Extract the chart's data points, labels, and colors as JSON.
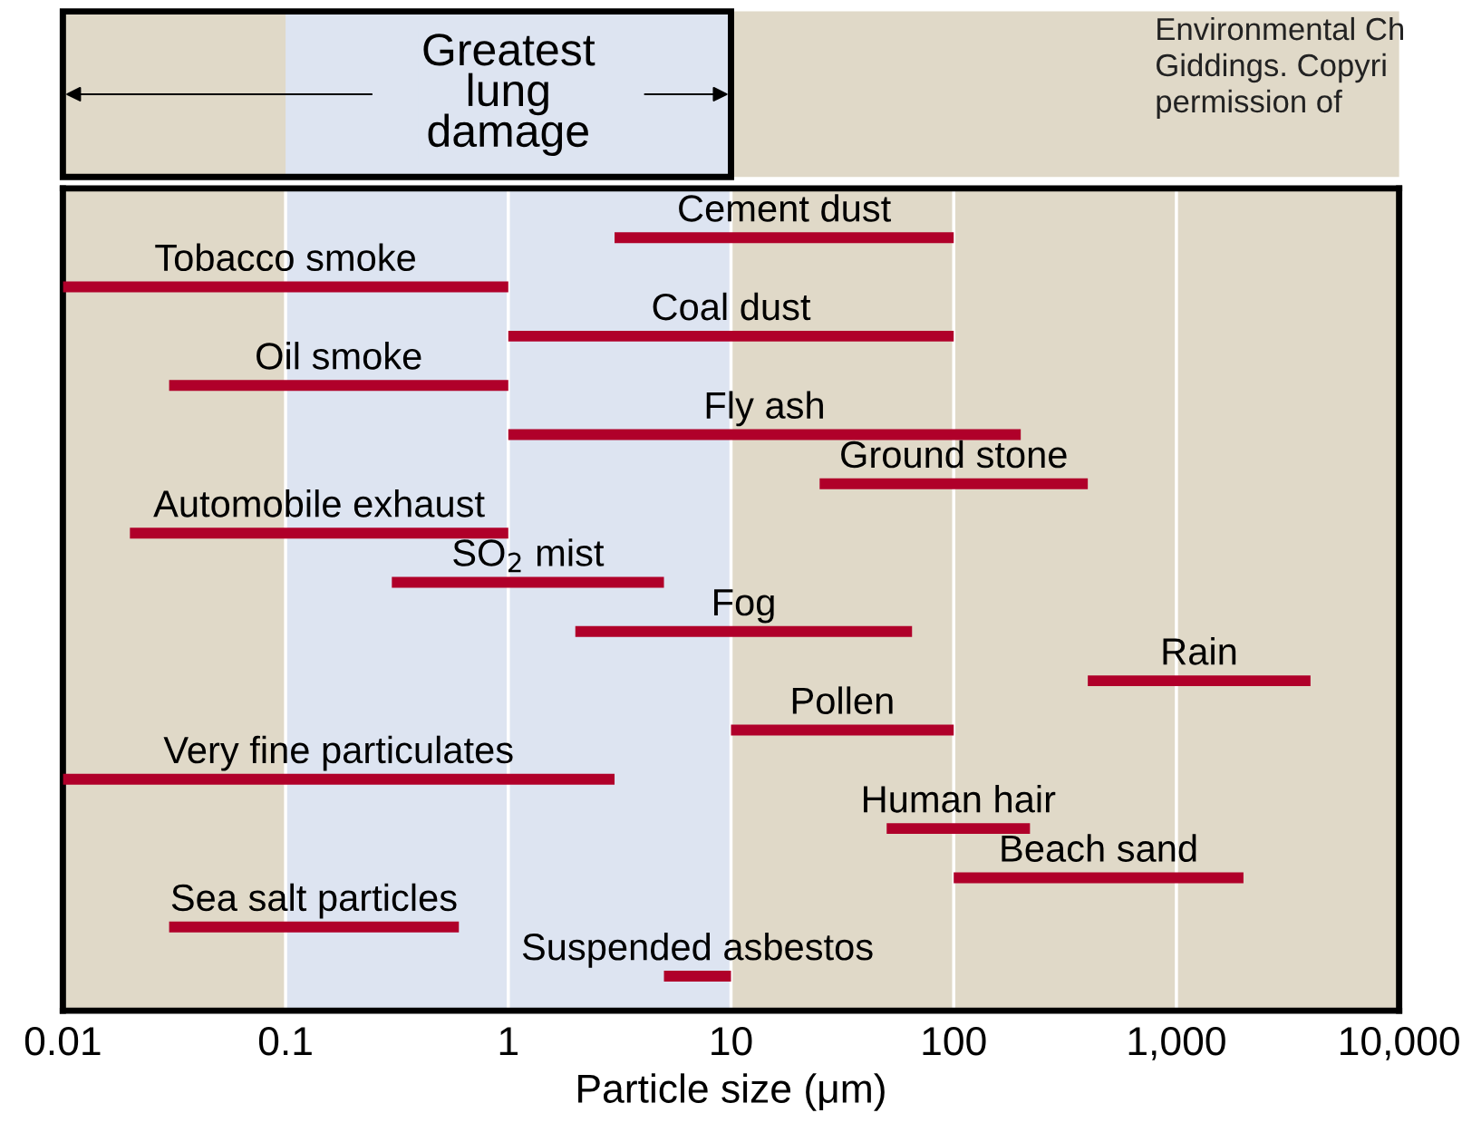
{
  "chart_data": {
    "type": "bar",
    "orientation": "horizontal",
    "log": "x",
    "xlabel": "Particle size (μm)",
    "categories": [
      "Cement dust",
      "Tobacco smoke",
      "Coal dust",
      "Oil smoke",
      "Fly ash",
      "Ground stone",
      "Automobile exhaust",
      "SO$_{2}$ mist",
      "Fog",
      "Rain",
      "Pollen",
      "Very fine particulates",
      "Human hair",
      "Beach sand",
      "Sea salt particles",
      "Suspended asbestos"
    ],
    "base": [
      3,
      0.01,
      1,
      0.03,
      1,
      25,
      0.02,
      0.3,
      2,
      400,
      10,
      0.01,
      50,
      100,
      0.03,
      5
    ],
    "values": [
      97,
      0.99,
      99,
      0.97,
      199,
      375,
      0.98,
      4.7,
      63,
      3600,
      90,
      2.99,
      170,
      1900,
      0.57,
      5
    ],
    "color": "#b0002a",
    "xlim": [
      0.01,
      10000
    ],
    "xticks": [
      0.01,
      0.1,
      1,
      10,
      100,
      {
        "value": 1000,
        "label": "1,000"
      },
      {
        "value": 10000,
        "label": "10,000"
      }
    ],
    "grid": "x",
    "bands": [
      {
        "axis": "x",
        "from": 0.1,
        "to": 10,
        "label": "Greatest lung damage",
        "color": "#dde4f1"
      }
    ],
    "annotations": [
      "Environmental Ch\nGiddings. Copyri\npermission of"
    ]
  }
}
